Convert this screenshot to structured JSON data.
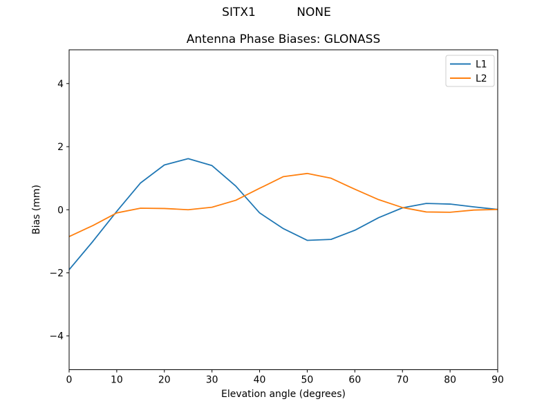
{
  "suptitle": "SITX1           NONE",
  "chart_data": {
    "type": "line",
    "title": "Antenna Phase Biases: GLONASS",
    "xlabel": "Elevation angle (degrees)",
    "ylabel": "Bias (mm)",
    "xlim": [
      0,
      90
    ],
    "ylim": [
      -5.07,
      5.07
    ],
    "xticks": [
      0,
      10,
      20,
      30,
      40,
      50,
      60,
      70,
      80,
      90
    ],
    "yticks": [
      -4,
      -2,
      0,
      2,
      4
    ],
    "grid": false,
    "legend_position": "upper right",
    "x": [
      0,
      5,
      10,
      15,
      20,
      25,
      30,
      35,
      40,
      45,
      50,
      55,
      60,
      65,
      70,
      75,
      80,
      85,
      90
    ],
    "series": [
      {
        "name": "L1",
        "color": "#1f77b4",
        "values": [
          -1.9,
          -1.0,
          -0.05,
          0.85,
          1.42,
          1.62,
          1.4,
          0.75,
          -0.1,
          -0.6,
          -0.97,
          -0.94,
          -0.65,
          -0.25,
          0.06,
          0.2,
          0.18,
          0.09,
          0.01
        ]
      },
      {
        "name": "L2",
        "color": "#ff7f0e",
        "values": [
          -0.85,
          -0.5,
          -0.1,
          0.05,
          0.04,
          0.0,
          0.08,
          0.3,
          0.68,
          1.05,
          1.15,
          1.0,
          0.65,
          0.32,
          0.07,
          -0.07,
          -0.08,
          -0.01,
          0.01
        ]
      }
    ],
    "colors": {
      "spine": "#000000",
      "background": "#ffffff",
      "legend_border": "#cccccc"
    }
  }
}
